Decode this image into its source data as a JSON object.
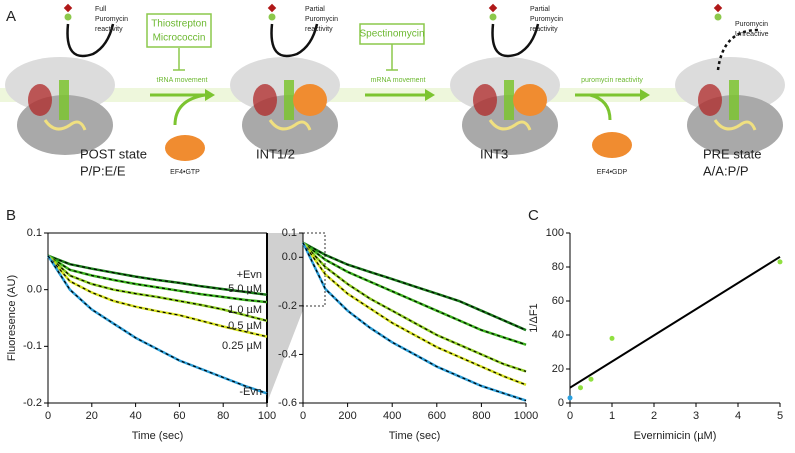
{
  "diagram": {
    "label": "A",
    "reactivity": [
      [
        "Full",
        "Puromycin",
        "reactivity"
      ],
      [
        "Partial",
        "Puromycin",
        "reactivity"
      ],
      [
        "Partial",
        "Puromycin",
        "reactivity"
      ],
      [
        "Puromycin",
        "Unreactive"
      ]
    ],
    "inhibitors": [
      [
        "Thiostrepton",
        "Micrococcin"
      ],
      [
        "Spectinomycin"
      ]
    ],
    "steps": [
      "tRNA movement",
      "mRNA movement",
      "puromycin reactivity"
    ],
    "factors": [
      "EF4•GTP",
      "EF4•GDP"
    ],
    "states": [
      {
        "name": "POST state",
        "sub": "P/P:E/E"
      },
      {
        "name": "INT1/2"
      },
      {
        "name": "INT3"
      },
      {
        "name": "PRE state",
        "sub": "A/A:P/P"
      }
    ]
  },
  "chart_data": [
    {
      "type": "line",
      "panel": "B",
      "frame": true,
      "x_label": "Time (sec)",
      "y_label": "Fluoresence (AU)",
      "xlim": [
        0,
        100
      ],
      "xticks": [
        0,
        20,
        40,
        60,
        80,
        100
      ],
      "ylim": [
        -0.2,
        0.1
      ],
      "yticks": [
        0.1,
        {
          "value": 0,
          "label": "0.0"
        },
        -0.1,
        -0.2
      ],
      "x": [
        0,
        10,
        20,
        30,
        40,
        50,
        60,
        70,
        80,
        90,
        100
      ],
      "series": [
        {
          "color": "#1a7a1a",
          "values": [
            0.06,
            0.045,
            0.037,
            0.03,
            0.023,
            0.017,
            0.012,
            0.006,
            0.001,
            -0.004,
            -0.009
          ]
        },
        {
          "color": "#3cb31e",
          "values": [
            0.06,
            0.035,
            0.025,
            0.017,
            0.01,
            0.004,
            -0.002,
            -0.008,
            -0.013,
            -0.018,
            -0.022
          ]
        },
        {
          "color": "#8ccc1e",
          "values": [
            0.06,
            0.025,
            0.01,
            0.0,
            -0.007,
            -0.013,
            -0.02,
            -0.027,
            -0.035,
            -0.045,
            -0.055
          ]
        },
        {
          "color": "#d4e01e",
          "values": [
            0.06,
            0.015,
            -0.005,
            -0.02,
            -0.03,
            -0.038,
            -0.045,
            -0.055,
            -0.065,
            -0.074,
            -0.083
          ]
        },
        {
          "color": "#2b9fd9",
          "values": [
            0.06,
            0.0,
            -0.035,
            -0.06,
            -0.085,
            -0.105,
            -0.125,
            -0.14,
            -0.155,
            -0.17,
            -0.183
          ]
        }
      ],
      "annotations": [
        "+Evn",
        "5.0 µM",
        "1.0 µM",
        "0.5 µM",
        "0.25 µM",
        "-Evn"
      ]
    },
    {
      "type": "line",
      "x_label": "Time (sec)",
      "xlim": [
        0,
        1000
      ],
      "xticks": [
        0,
        200,
        400,
        600,
        800,
        1000
      ],
      "ylim": [
        -0.6,
        0.1
      ],
      "yticks": [
        0.1,
        {
          "value": 0,
          "label": "0.0"
        },
        -0.2,
        -0.4,
        -0.6
      ],
      "x": [
        0,
        100,
        200,
        300,
        400,
        500,
        600,
        700,
        800,
        900,
        1000
      ],
      "series": [
        {
          "color": "#1a7a1a",
          "values": [
            0.06,
            0.01,
            -0.03,
            -0.06,
            -0.09,
            -0.12,
            -0.15,
            -0.18,
            -0.22,
            -0.26,
            -0.3
          ]
        },
        {
          "color": "#3cb31e",
          "values": [
            0.06,
            -0.01,
            -0.06,
            -0.1,
            -0.14,
            -0.18,
            -0.22,
            -0.26,
            -0.3,
            -0.33,
            -0.36
          ]
        },
        {
          "color": "#8ccc1e",
          "values": [
            0.06,
            -0.04,
            -0.11,
            -0.17,
            -0.22,
            -0.27,
            -0.32,
            -0.36,
            -0.4,
            -0.44,
            -0.47
          ]
        },
        {
          "color": "#d4e01e",
          "values": [
            0.06,
            -0.07,
            -0.15,
            -0.21,
            -0.27,
            -0.32,
            -0.37,
            -0.41,
            -0.45,
            -0.49,
            -0.525
          ]
        },
        {
          "color": "#2b9fd9",
          "values": [
            0.06,
            -0.13,
            -0.22,
            -0.29,
            -0.35,
            -0.4,
            -0.45,
            -0.49,
            -0.53,
            -0.56,
            -0.59
          ]
        }
      ]
    },
    {
      "type": "scatter",
      "panel": "C",
      "x_label": "Evernimicin (µM)",
      "y_label": "1/ΔF1",
      "xlim": [
        0,
        5
      ],
      "xticks": [
        0,
        1,
        2,
        3,
        4,
        5
      ],
      "ylim": [
        0,
        100
      ],
      "yticks": [
        0,
        20,
        40,
        60,
        80,
        100
      ],
      "series": [
        {
          "color": "#2aa0e0",
          "x": [
            0
          ],
          "values": [
            3
          ]
        },
        {
          "color": "#90e040",
          "x": [
            0.25,
            0.5,
            1,
            5
          ],
          "values": [
            9,
            14,
            38,
            83
          ]
        }
      ],
      "fit": {
        "color": "#000000",
        "x": [
          0,
          5
        ],
        "values": [
          9,
          86
        ]
      }
    }
  ]
}
